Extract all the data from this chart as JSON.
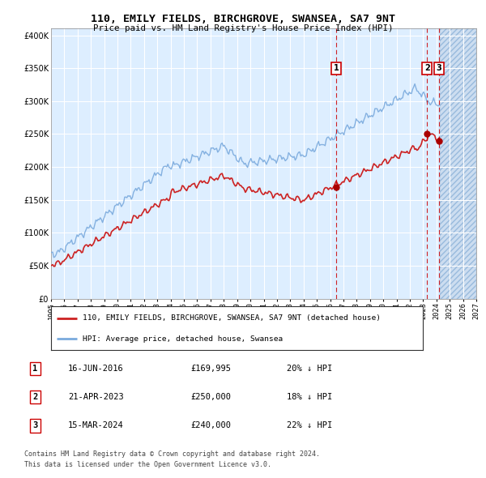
{
  "title": "110, EMILY FIELDS, BIRCHGROVE, SWANSEA, SA7 9NT",
  "subtitle": "Price paid vs. HM Land Registry's House Price Index (HPI)",
  "legend_label1": "110, EMILY FIELDS, BIRCHGROVE, SWANSEA, SA7 9NT (detached house)",
  "legend_label2": "HPI: Average price, detached house, Swansea",
  "footer1": "Contains HM Land Registry data © Crown copyright and database right 2024.",
  "footer2": "This data is licensed under the Open Government Licence v3.0.",
  "hpi_color": "#7aaadd",
  "price_color": "#cc2222",
  "marker_color": "#aa0000",
  "bg_color": "#ddeeff",
  "grid_color": "#ffffff",
  "transactions": [
    {
      "label": "1",
      "date": "16-JUN-2016",
      "price": 169995,
      "pct": "20%",
      "x": 2016.46
    },
    {
      "label": "2",
      "date": "21-APR-2023",
      "price": 250000,
      "pct": "18%",
      "x": 2023.3
    },
    {
      "label": "3",
      "date": "15-MAR-2024",
      "price": 240000,
      "pct": "22%",
      "x": 2024.21
    }
  ],
  "ylim": [
    0,
    410000
  ],
  "xlim": [
    1995,
    2027
  ],
  "yticks": [
    0,
    50000,
    100000,
    150000,
    200000,
    250000,
    300000,
    350000,
    400000
  ],
  "ytick_labels": [
    "£0",
    "£50K",
    "£100K",
    "£150K",
    "£200K",
    "£250K",
    "£300K",
    "£350K",
    "£400K"
  ]
}
